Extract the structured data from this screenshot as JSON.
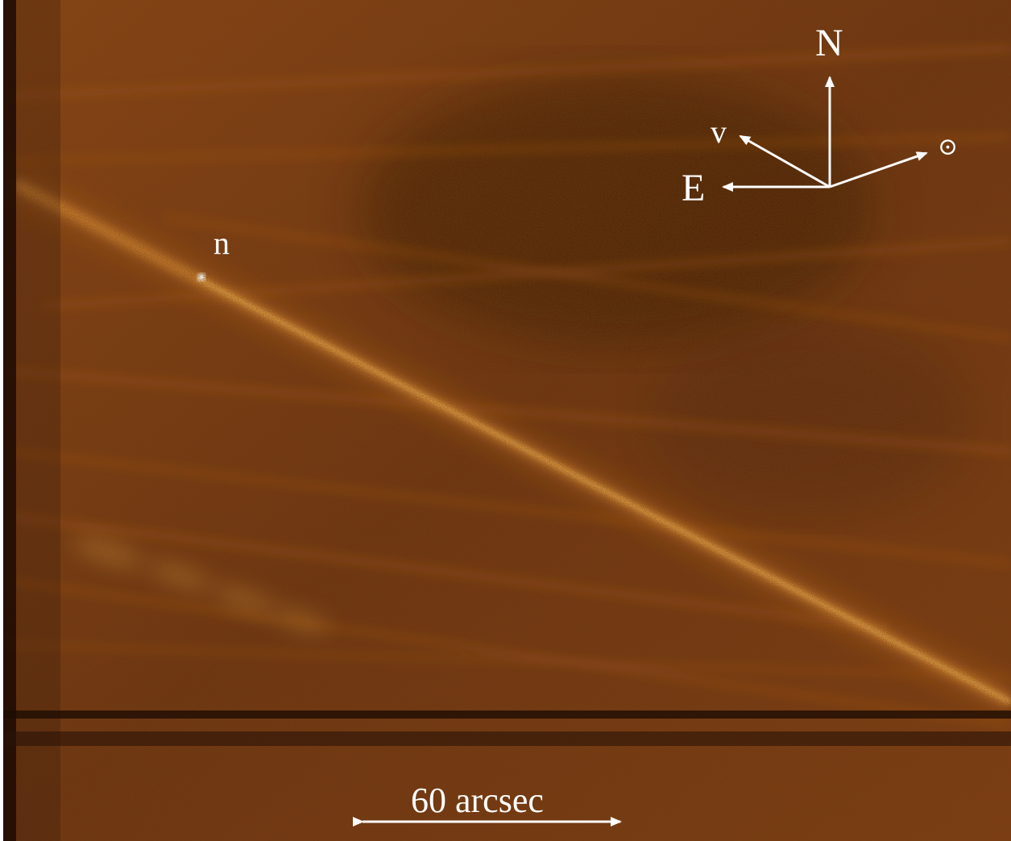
{
  "figure": {
    "nucleus_label": "n",
    "compass": {
      "north_label": "N",
      "east_label": "E",
      "velocity_label": "v",
      "sun_symbol": "⊙"
    },
    "scale_bar_label": "60 arcsec",
    "colors": {
      "background": "#7a3a10",
      "tail": "#f0a030",
      "annotation": "#ffffff"
    }
  }
}
